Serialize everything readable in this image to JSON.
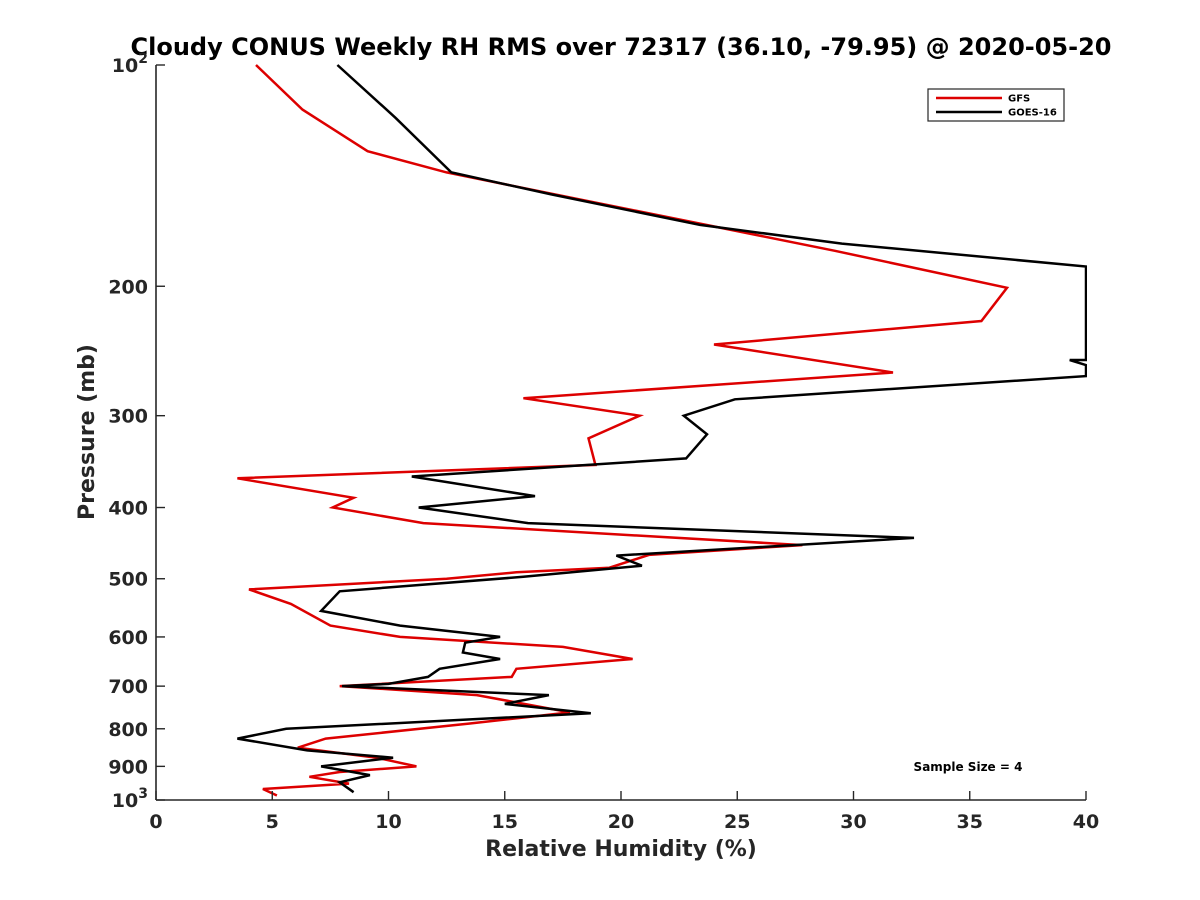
{
  "chart_data": {
    "type": "line",
    "title": "Cloudy CONUS Weekly RH RMS over 72317 (36.10, -79.95) @ 2020-05-20",
    "xlabel": "Relative Humidity (%)",
    "ylabel": "Pressure (mb)",
    "xlim": [
      0,
      40
    ],
    "ylim": [
      100,
      1000
    ],
    "y_scale": "log",
    "y_reversed": true,
    "grid": false,
    "legend_position": "top-right",
    "x_ticks": [
      0,
      5,
      10,
      15,
      20,
      25,
      30,
      35,
      40
    ],
    "y_ticks": [
      {
        "value": 100,
        "label": "10",
        "sup": "2"
      },
      {
        "value": 200,
        "label": "200"
      },
      {
        "value": 300,
        "label": "300"
      },
      {
        "value": 400,
        "label": "400"
      },
      {
        "value": 500,
        "label": "500"
      },
      {
        "value": 600,
        "label": "600"
      },
      {
        "value": 700,
        "label": "700"
      },
      {
        "value": 800,
        "label": "800"
      },
      {
        "value": 900,
        "label": "900"
      },
      {
        "value": 1000,
        "label": "10",
        "sup": "3"
      }
    ],
    "annotation": "Sample Size = 4",
    "series": [
      {
        "name": "GFS",
        "color": "#dd0000",
        "points": [
          [
            4.3,
            100
          ],
          [
            6.3,
            115
          ],
          [
            9.1,
            131
          ],
          [
            12.5,
            140
          ],
          [
            18.5,
            153
          ],
          [
            29.2,
            179
          ],
          [
            36.6,
            201
          ],
          [
            35.5,
            223
          ],
          [
            24.0,
            240
          ],
          [
            31.7,
            262
          ],
          [
            15.8,
            284
          ],
          [
            20.8,
            300
          ],
          [
            18.6,
            322
          ],
          [
            18.9,
            350
          ],
          [
            3.5,
            365
          ],
          [
            8.5,
            388
          ],
          [
            7.6,
            400
          ],
          [
            11.5,
            420
          ],
          [
            27.8,
            450
          ],
          [
            21.2,
            464
          ],
          [
            19.5,
            483
          ],
          [
            15.5,
            490
          ],
          [
            12.5,
            500
          ],
          [
            4.0,
            517
          ],
          [
            5.8,
            541
          ],
          [
            7.5,
            579
          ],
          [
            10.5,
            600
          ],
          [
            17.5,
            619
          ],
          [
            20.5,
            643
          ],
          [
            15.5,
            663
          ],
          [
            15.3,
            680
          ],
          [
            7.9,
            700
          ],
          [
            13.8,
            720
          ],
          [
            17.8,
            760
          ],
          [
            13.5,
            787
          ],
          [
            7.3,
            825
          ],
          [
            6.1,
            849
          ],
          [
            9.5,
            876
          ],
          [
            11.2,
            900
          ],
          [
            7.9,
            916
          ],
          [
            6.6,
            930
          ],
          [
            8.3,
            950
          ],
          [
            4.6,
            966
          ],
          [
            5.2,
            986
          ]
        ]
      },
      {
        "name": "GOES-16",
        "color": "#000000",
        "points": [
          [
            7.8,
            100
          ],
          [
            10.3,
            118
          ],
          [
            12.7,
            140
          ],
          [
            17.0,
            150
          ],
          [
            23.4,
            165
          ],
          [
            29.5,
            175
          ],
          [
            40.0,
            188
          ],
          [
            40.0,
            252
          ],
          [
            39.3,
            252
          ],
          [
            40.0,
            256
          ],
          [
            40.0,
            265
          ],
          [
            24.9,
            285
          ],
          [
            22.7,
            300
          ],
          [
            23.7,
            318
          ],
          [
            22.8,
            343
          ],
          [
            11.0,
            363
          ],
          [
            16.3,
            386
          ],
          [
            11.3,
            400
          ],
          [
            16.0,
            420
          ],
          [
            32.6,
            440
          ],
          [
            19.8,
            465
          ],
          [
            20.9,
            480
          ],
          [
            15.8,
            497
          ],
          [
            7.9,
            520
          ],
          [
            7.1,
            553
          ],
          [
            10.5,
            579
          ],
          [
            14.8,
            600
          ],
          [
            13.3,
            611
          ],
          [
            13.2,
            630
          ],
          [
            14.8,
            643
          ],
          [
            12.2,
            663
          ],
          [
            11.7,
            680
          ],
          [
            10.0,
            695
          ],
          [
            8.0,
            700
          ],
          [
            16.9,
            720
          ],
          [
            15.0,
            740
          ],
          [
            18.7,
            762
          ],
          [
            5.6,
            800
          ],
          [
            3.5,
            825
          ],
          [
            6.5,
            856
          ],
          [
            10.2,
            876
          ],
          [
            7.1,
            900
          ],
          [
            9.2,
            925
          ],
          [
            7.9,
            946
          ],
          [
            8.5,
            976
          ]
        ]
      }
    ]
  }
}
